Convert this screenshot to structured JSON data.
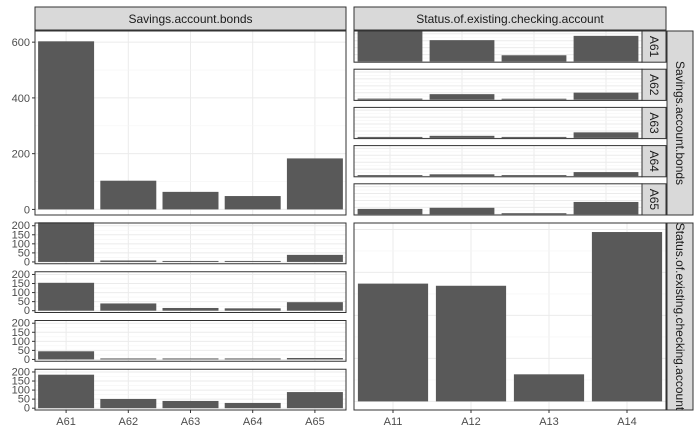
{
  "chart_data": {
    "type": "bar",
    "layout": "pairs-matrix",
    "variables": [
      "Savings.account.bonds",
      "Status.of.existing.checking.account"
    ],
    "strip_labels": {
      "top": [
        "Savings.account.bonds",
        "Status.of.existing.checking.account"
      ],
      "right": [
        "Savings.account.bonds",
        "Status.of.existing.checking.account"
      ]
    },
    "savings_categories": [
      "A61",
      "A62",
      "A63",
      "A64",
      "A65"
    ],
    "checking_categories": [
      "A11",
      "A12",
      "A13",
      "A14"
    ],
    "x_tick_labels": {
      "left_column": [
        "A61",
        "A62",
        "A63",
        "A64",
        "A65"
      ],
      "right_column": [
        "A11",
        "A12",
        "A13",
        "A14"
      ]
    },
    "savings_counts": [
      603,
      103,
      63,
      48,
      183
    ],
    "checking_counts": [
      274,
      269,
      63,
      394
    ],
    "savings_axis": {
      "ticks": [
        0,
        200,
        400,
        600
      ],
      "ylim": [
        -20,
        640
      ]
    },
    "checking_axis": {
      "ylim": [
        -20,
        415
      ]
    },
    "facet_axis": {
      "ticks": [
        0,
        50,
        100,
        150,
        200
      ],
      "ylim": [
        -10,
        215
      ]
    },
    "crosstab_checking_by_savings": {
      "rows": [
        "A11",
        "A12",
        "A13",
        "A14"
      ],
      "columns": [
        "A61",
        "A62",
        "A63",
        "A64",
        "A65"
      ],
      "values": [
        [
          219,
          8,
          4,
          4,
          39
        ],
        [
          154,
          40,
          15,
          13,
          47
        ],
        [
          45,
          4,
          4,
          2,
          8
        ],
        [
          185,
          51,
          40,
          29,
          89
        ]
      ]
    },
    "colors": {
      "bar": "#595959",
      "strip_fill": "#d9d9d9",
      "panel_border": "#333333",
      "grid_major": "#ebebeb",
      "grid_minor": "#f5f5f5"
    },
    "grid": true,
    "legend": "none"
  }
}
